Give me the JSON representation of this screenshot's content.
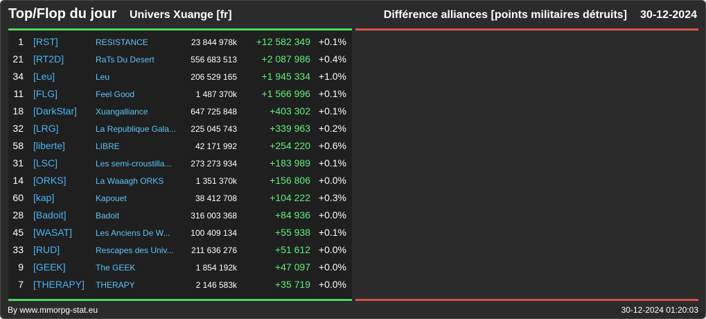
{
  "header": {
    "title": "Top/Flop du jour",
    "universe": "Univers Xuange [fr]",
    "category": "Différence alliances [points militaires détruits]",
    "date": "30-12-2024"
  },
  "colors": {
    "top": "#4cd964",
    "flop": "#d9534f",
    "tag": "#4ab3f2",
    "gain": "#5ef07a"
  },
  "top_rows": [
    {
      "rank": "1",
      "tag": "[RST]",
      "name": "RESISTANCE",
      "points": "23 844 978k",
      "diff": "+12 582 349",
      "pct": "+0.1%"
    },
    {
      "rank": "21",
      "tag": "[RT2D]",
      "name": "RaTs Du Desert",
      "points": "556 683 513",
      "diff": "+2 087 986",
      "pct": "+0.4%"
    },
    {
      "rank": "34",
      "tag": "[Leu]",
      "name": "Leu",
      "points": "206 529 165",
      "diff": "+1 945 334",
      "pct": "+1.0%"
    },
    {
      "rank": "11",
      "tag": "[FLG]",
      "name": "Feel Good",
      "points": "1 487 370k",
      "diff": "+1 566 996",
      "pct": "+0.1%"
    },
    {
      "rank": "18",
      "tag": "[DarkStar]",
      "name": "Xuangalliance",
      "points": "647 725 848",
      "diff": "+403 302",
      "pct": "+0.1%"
    },
    {
      "rank": "32",
      "tag": "[LRG]",
      "name": "La Republique Gala...",
      "points": "225 045 743",
      "diff": "+339 963",
      "pct": "+0.2%"
    },
    {
      "rank": "58",
      "tag": "[liberte]",
      "name": "LIBRE",
      "points": "42 171 992",
      "diff": "+254 220",
      "pct": "+0.6%"
    },
    {
      "rank": "31",
      "tag": "[LSC]",
      "name": "Les semi-croustilla...",
      "points": "273 273 934",
      "diff": "+183 989",
      "pct": "+0.1%"
    },
    {
      "rank": "14",
      "tag": "[ORKS]",
      "name": "La Waaagh ORKS",
      "points": "1 351 370k",
      "diff": "+156 806",
      "pct": "+0.0%"
    },
    {
      "rank": "60",
      "tag": "[kap]",
      "name": "Kapouet",
      "points": "38 412 708",
      "diff": "+104 222",
      "pct": "+0.3%"
    },
    {
      "rank": "28",
      "tag": "[Badoit]",
      "name": "Badoit",
      "points": "316 003 368",
      "diff": "+84 936",
      "pct": "+0.0%"
    },
    {
      "rank": "45",
      "tag": "[WASAT]",
      "name": "Les Anciens De W...",
      "points": "100 409 134",
      "diff": "+55 938",
      "pct": "+0.1%"
    },
    {
      "rank": "33",
      "tag": "[RUD]",
      "name": "Rescapes des Univ...",
      "points": "211 636 276",
      "diff": "+51 612",
      "pct": "+0.0%"
    },
    {
      "rank": "9",
      "tag": "[GEEK]",
      "name": "The GEEK",
      "points": "1 854 192k",
      "diff": "+47 097",
      "pct": "+0.0%"
    },
    {
      "rank": "7",
      "tag": "[THERAPY]",
      "name": "THERAPY",
      "points": "2 146 583k",
      "diff": "+35 719",
      "pct": "+0.0%"
    }
  ],
  "footer": {
    "source": "By www.mmorpg-stat.eu",
    "timestamp": "30-12-2024 01:20:03"
  }
}
